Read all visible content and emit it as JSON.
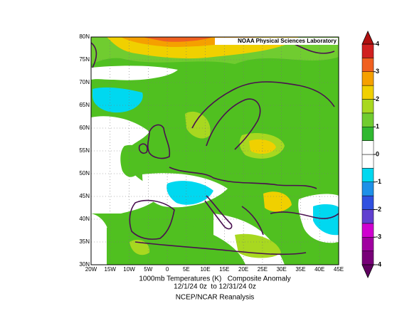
{
  "header": {
    "credit": "NOAA Physical Sciences Laboratory"
  },
  "map": {
    "lat_labels": [
      "80N",
      "75N",
      "70N",
      "65N",
      "60N",
      "55N",
      "50N",
      "45N",
      "40N",
      "35N",
      "30N"
    ],
    "lon_labels": [
      "20W",
      "15W",
      "10W",
      "5W",
      "0",
      "5E",
      "10E",
      "15E",
      "20E",
      "25E",
      "30E",
      "35E",
      "40E",
      "45E"
    ]
  },
  "caption": {
    "line1": "1000mb Temperatures (K)   Composite Anomaly",
    "line2": "12/1/24 0z  to 12/31/24 0z",
    "source": "NCEP/NCAR Reanalysis"
  },
  "colorbar": {
    "ticks": [
      4,
      3,
      2,
      1,
      0,
      -1,
      -2,
      -3,
      -4
    ],
    "colors": [
      "#780078",
      "#a000a0",
      "#d000d0",
      "#6040d0",
      "#3050e0",
      "#1e90e8",
      "#00d8f0",
      "#ffffff",
      "#ffffff",
      "#30b830",
      "#70cc30",
      "#a8d820",
      "#f0d000",
      "#f5a000",
      "#f06020",
      "#d02020"
    ],
    "under_color": "#600060",
    "over_color": "#b01010"
  }
}
